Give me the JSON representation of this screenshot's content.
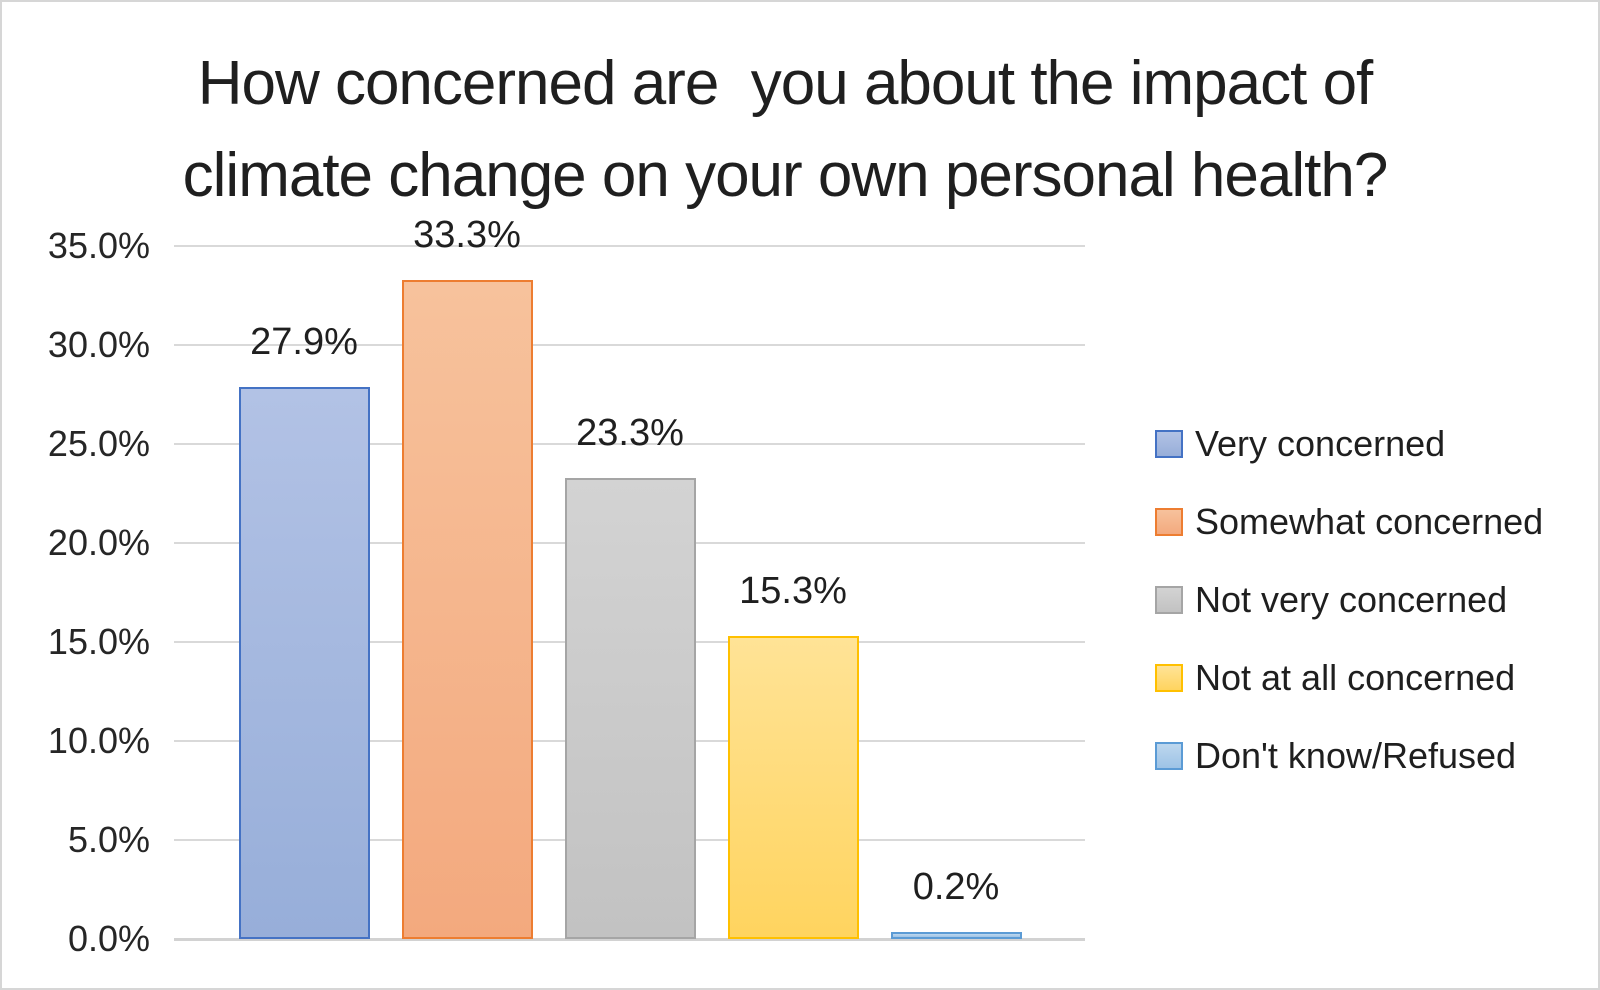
{
  "chart_data": {
    "type": "bar",
    "title": "How concerned are  you about the impact of climate change on your own personal health?",
    "title_lines": [
      "How concerned are  you about the impact of",
      "climate change on your own personal health?"
    ],
    "categories": [
      "Very concerned",
      "Somewhat concerned",
      "Not very concerned",
      "Not at all concerned",
      "Don't know/Refused"
    ],
    "values": [
      27.9,
      33.3,
      23.3,
      15.3,
      0.2
    ],
    "data_labels": [
      "27.9%",
      "33.3%",
      "23.3%",
      "15.3%",
      "0.2%"
    ],
    "xlabel": "",
    "ylabel": "",
    "ylim": [
      0,
      35
    ],
    "y_tick_labels": [
      "35.0%",
      "30.0%",
      "25.0%",
      "20.0%",
      "15.0%",
      "10.0%",
      "5.0%",
      "0.0%"
    ],
    "y_tick_values": [
      35,
      30,
      25,
      20,
      15,
      10,
      5,
      0
    ],
    "grid": true,
    "legend_position": "right",
    "series_colors": [
      {
        "name": "Very concerned",
        "fill_top": "#b2c2e5",
        "fill_bottom": "#97aed9",
        "border": "#4472c4"
      },
      {
        "name": "Somewhat concerned",
        "fill_top": "#f7c29c",
        "fill_bottom": "#f3a97e",
        "border": "#ed7d31"
      },
      {
        "name": "Not very concerned",
        "fill_top": "#d3d3d3",
        "fill_bottom": "#c2c2c2",
        "border": "#a5a5a5"
      },
      {
        "name": "Not at all concerned",
        "fill_top": "#ffe396",
        "fill_bottom": "#ffd45f",
        "border": "#ffc000"
      },
      {
        "name": "Don't know/Refused",
        "fill_top": "#bdd7ee",
        "fill_bottom": "#9dc3e6",
        "border": "#5b9bd5"
      }
    ],
    "gridline_color": "#d9d9d9",
    "axis_line_color": "#d2d2d2",
    "title_color": "#1f1f1f",
    "label_color": "#262626"
  }
}
